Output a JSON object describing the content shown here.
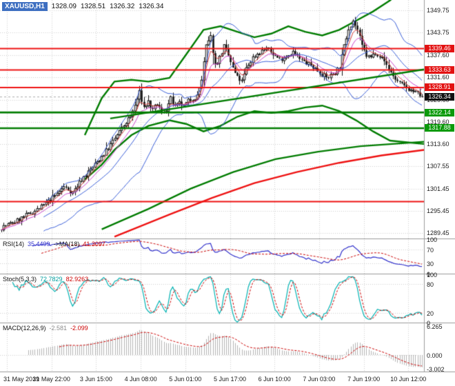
{
  "header": {
    "symbol": "XAUUSD,H1",
    "open": "1328.09",
    "high": "1328.51",
    "low": "1326.32",
    "close": "1326.34"
  },
  "price_axis": {
    "labels": [
      "1349.75",
      "1343.75",
      "1337.60",
      "1331.60",
      "1325.60",
      "1319.60",
      "1313.60",
      "1307.55",
      "1301.45",
      "1295.45",
      "1289.45"
    ]
  },
  "time_axis": {
    "labels": [
      "31 May 2019",
      "31 May 22:00",
      "3 Jun 15:00",
      "4 Jun 08:00",
      "5 Jun 01:00",
      "5 Jun 17:00",
      "6 Jun 10:00",
      "7 Jun 03:00",
      "7 Jun 19:00",
      "10 Jun 12:00"
    ]
  },
  "badges": {
    "resistance": [
      {
        "label": "1339.46",
        "price": 1339.46
      },
      {
        "label": "1333.63",
        "price": 1333.63
      },
      {
        "label": "1328.91",
        "price": 1328.91
      }
    ],
    "support": [
      {
        "label": "1322.14",
        "price": 1322.14
      },
      {
        "label": "1317.88",
        "price": 1317.88
      }
    ],
    "current": {
      "label": "1326.34",
      "price": 1326.34
    }
  },
  "indicators": {
    "rsi": {
      "name": "RSI(14)",
      "value": "35.4499",
      "ma_name": "->MA(18)",
      "ma_value": "41.3097",
      "axis": [
        "100",
        "70",
        "30",
        "0"
      ],
      "levels": [
        70,
        30
      ],
      "period": 14,
      "ma_period": 18
    },
    "stoch": {
      "name": "Stoch(5,3,3)",
      "k_value": "72.7829",
      "d_value": "82.9263",
      "axis": [
        "100",
        "80",
        "20",
        "0"
      ],
      "levels": [
        80,
        20
      ],
      "k": 5,
      "slowing": 3,
      "d": 3
    },
    "macd": {
      "name": "MACD(12,26,9)",
      "value": "-2.581",
      "signal_value": "-2.099",
      "axis": [
        "6.265",
        "0.000",
        "-3.002"
      ],
      "fast": 12,
      "slow": 26,
      "signal": 9,
      "range": [
        -3.6,
        6.9
      ]
    }
  },
  "colors": {
    "background": "#ffffff",
    "grid": "#cfcfcf",
    "separator": "#9a9a9a",
    "candle_outline": "#111111",
    "bull": "#ffffff",
    "bear": "#111111",
    "red_line": "#ee1111",
    "green_line": "#007c00",
    "bb": "#3a5fd9",
    "ma_fast_red": "#d43a3a",
    "ma_fast_magenta": "#cc44cc",
    "rsi_line": "#3333cc",
    "rsi_ma": "#cc0000",
    "stoch_k": "#00b2b2",
    "stoch_d": "#cc0000",
    "macd_hist": "#b4b4b4",
    "macd_signal": "#cc0000",
    "bid_line": "#aaaaaa",
    "symbol_chip": "#3e6fc1"
  },
  "chart_data": {
    "type": "candlestick",
    "title": "XAUUSD,H1",
    "ylim": [
      1288.0,
      1352.6
    ],
    "num_candles": 190,
    "close_path_anchors": [
      [
        0,
        1291.0
      ],
      [
        6,
        1292.5
      ],
      [
        12,
        1294.5
      ],
      [
        18,
        1296.5
      ],
      [
        24,
        1299.5
      ],
      [
        28,
        1302.0
      ],
      [
        32,
        1300.5
      ],
      [
        36,
        1304.0
      ],
      [
        42,
        1308.0
      ],
      [
        48,
        1312.5
      ],
      [
        52,
        1316.0
      ],
      [
        56,
        1319.5
      ],
      [
        58,
        1321.0
      ],
      [
        60,
        1324.0
      ],
      [
        62,
        1327.5
      ],
      [
        64,
        1323.5
      ],
      [
        66,
        1325.0
      ],
      [
        68,
        1322.5
      ],
      [
        70,
        1324.5
      ],
      [
        72,
        1322.0
      ],
      [
        74,
        1323.0
      ],
      [
        76,
        1325.8
      ],
      [
        78,
        1323.5
      ],
      [
        80,
        1324.5
      ],
      [
        82,
        1323.8
      ],
      [
        84,
        1325.2
      ],
      [
        86,
        1326.0
      ],
      [
        88,
        1326.5
      ],
      [
        90,
        1331.0
      ],
      [
        92,
        1340.0
      ],
      [
        94,
        1342.5
      ],
      [
        96,
        1335.0
      ],
      [
        98,
        1337.0
      ],
      [
        100,
        1340.0
      ],
      [
        102,
        1337.5
      ],
      [
        104,
        1334.0
      ],
      [
        106,
        1331.5
      ],
      [
        108,
        1330.5
      ],
      [
        110,
        1334.0
      ],
      [
        113,
        1337.0
      ],
      [
        116,
        1338.5
      ],
      [
        119,
        1339.5
      ],
      [
        122,
        1338.0
      ],
      [
        125,
        1336.5
      ],
      [
        128,
        1337.5
      ],
      [
        131,
        1338.5
      ],
      [
        134,
        1336.5
      ],
      [
        137,
        1335.5
      ],
      [
        140,
        1334.5
      ],
      [
        143,
        1333.0
      ],
      [
        146,
        1331.5
      ],
      [
        149,
        1332.5
      ],
      [
        152,
        1334.5
      ],
      [
        154,
        1340.0
      ],
      [
        156,
        1345.0
      ],
      [
        158,
        1347.0
      ],
      [
        160,
        1344.5
      ],
      [
        162,
        1340.0
      ],
      [
        164,
        1337.5
      ],
      [
        166,
        1337.0
      ],
      [
        168,
        1338.5
      ],
      [
        170,
        1337.5
      ],
      [
        172,
        1336.0
      ],
      [
        174,
        1334.0
      ],
      [
        176,
        1332.0
      ],
      [
        178,
        1330.5
      ],
      [
        180,
        1329.5
      ],
      [
        182,
        1328.8
      ],
      [
        184,
        1328.2
      ],
      [
        186,
        1327.5
      ],
      [
        188,
        1326.8
      ],
      [
        189,
        1326.34
      ]
    ],
    "levels": {
      "resistance": [
        1339.46,
        1333.63,
        1328.91
      ],
      "support": [
        1322.14,
        1317.88
      ],
      "red_line_low": 1298.0,
      "current_price": 1326.34
    },
    "overlays": {
      "green_upper_band": [
        [
          0.2,
          1316.0
        ],
        [
          0.24,
          1326.0
        ],
        [
          0.27,
          1330.5
        ],
        [
          0.31,
          1331.0
        ],
        [
          0.35,
          1330.5
        ],
        [
          0.4,
          1331.5
        ],
        [
          0.44,
          1338.0
        ],
        [
          0.48,
          1344.5
        ],
        [
          0.52,
          1345.5
        ],
        [
          0.56,
          1344.0
        ],
        [
          0.6,
          1342.5
        ],
        [
          0.64,
          1343.5
        ],
        [
          0.68,
          1345.5
        ],
        [
          0.72,
          1344.0
        ],
        [
          0.76,
          1343.0
        ],
        [
          0.8,
          1344.5
        ],
        [
          0.84,
          1347.0
        ],
        [
          0.88,
          1349.5
        ],
        [
          0.92,
          1352.5
        ],
        [
          1.0,
          1360.0
        ]
      ],
      "green_lower_band": [
        [
          0.2,
          1304.0
        ],
        [
          0.24,
          1308.0
        ],
        [
          0.27,
          1312.0
        ],
        [
          0.31,
          1316.0
        ],
        [
          0.35,
          1318.5
        ],
        [
          0.4,
          1320.0
        ],
        [
          0.44,
          1319.0
        ],
        [
          0.48,
          1317.0
        ],
        [
          0.52,
          1318.5
        ],
        [
          0.56,
          1321.0
        ],
        [
          0.6,
          1322.5
        ],
        [
          0.64,
          1322.0
        ],
        [
          0.68,
          1322.5
        ],
        [
          0.72,
          1323.5
        ],
        [
          0.76,
          1324.0
        ],
        [
          0.8,
          1322.5
        ],
        [
          0.84,
          1320.0
        ],
        [
          0.88,
          1317.0
        ],
        [
          0.92,
          1314.5
        ],
        [
          1.0,
          1313.6
        ]
      ],
      "green_trendline": [
        [
          0.26,
          1320.5
        ],
        [
          1.0,
          1333.8
        ]
      ],
      "green_ma": [
        [
          0.24,
          1290.5
        ],
        [
          0.35,
          1296.0
        ],
        [
          0.45,
          1301.5
        ],
        [
          0.55,
          1306.0
        ],
        [
          0.65,
          1309.5
        ],
        [
          0.75,
          1311.5
        ],
        [
          0.85,
          1313.0
        ],
        [
          1.0,
          1314.2
        ]
      ],
      "red_ma": [
        [
          0.27,
          1288.5
        ],
        [
          0.4,
          1294.5
        ],
        [
          0.5,
          1299.0
        ],
        [
          0.6,
          1303.0
        ],
        [
          0.7,
          1306.0
        ],
        [
          0.8,
          1308.5
        ],
        [
          0.9,
          1310.5
        ],
        [
          1.0,
          1312.0
        ]
      ]
    }
  }
}
